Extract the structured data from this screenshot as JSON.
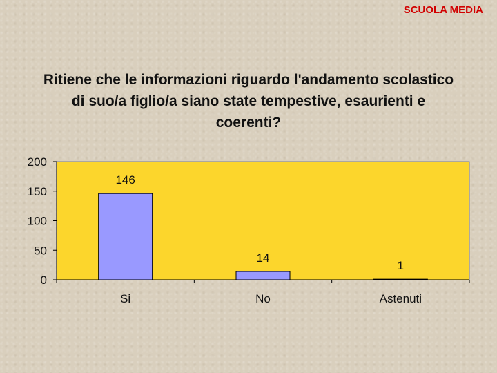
{
  "header": {
    "label": "SCUOLA MEDIA",
    "color": "#d10000"
  },
  "chart_data": {
    "type": "bar",
    "title": "Ritiene che le informazioni riguardo l'andamento scolastico di suo/a figlio/a siano state tempestive, esaurienti e coerenti?",
    "categories": [
      "Si",
      "No",
      "Astenuti"
    ],
    "values": [
      146,
      14,
      1
    ],
    "data_labels": [
      "146",
      "14",
      "1"
    ],
    "yticks": [
      "0",
      "50",
      "100",
      "150",
      "200"
    ],
    "ylim": [
      0,
      200
    ],
    "xlabel": "",
    "ylabel": "",
    "grid": false,
    "legend": "none",
    "plot_bg_color": "#fcd62c",
    "bar_color": "#9999ff"
  }
}
